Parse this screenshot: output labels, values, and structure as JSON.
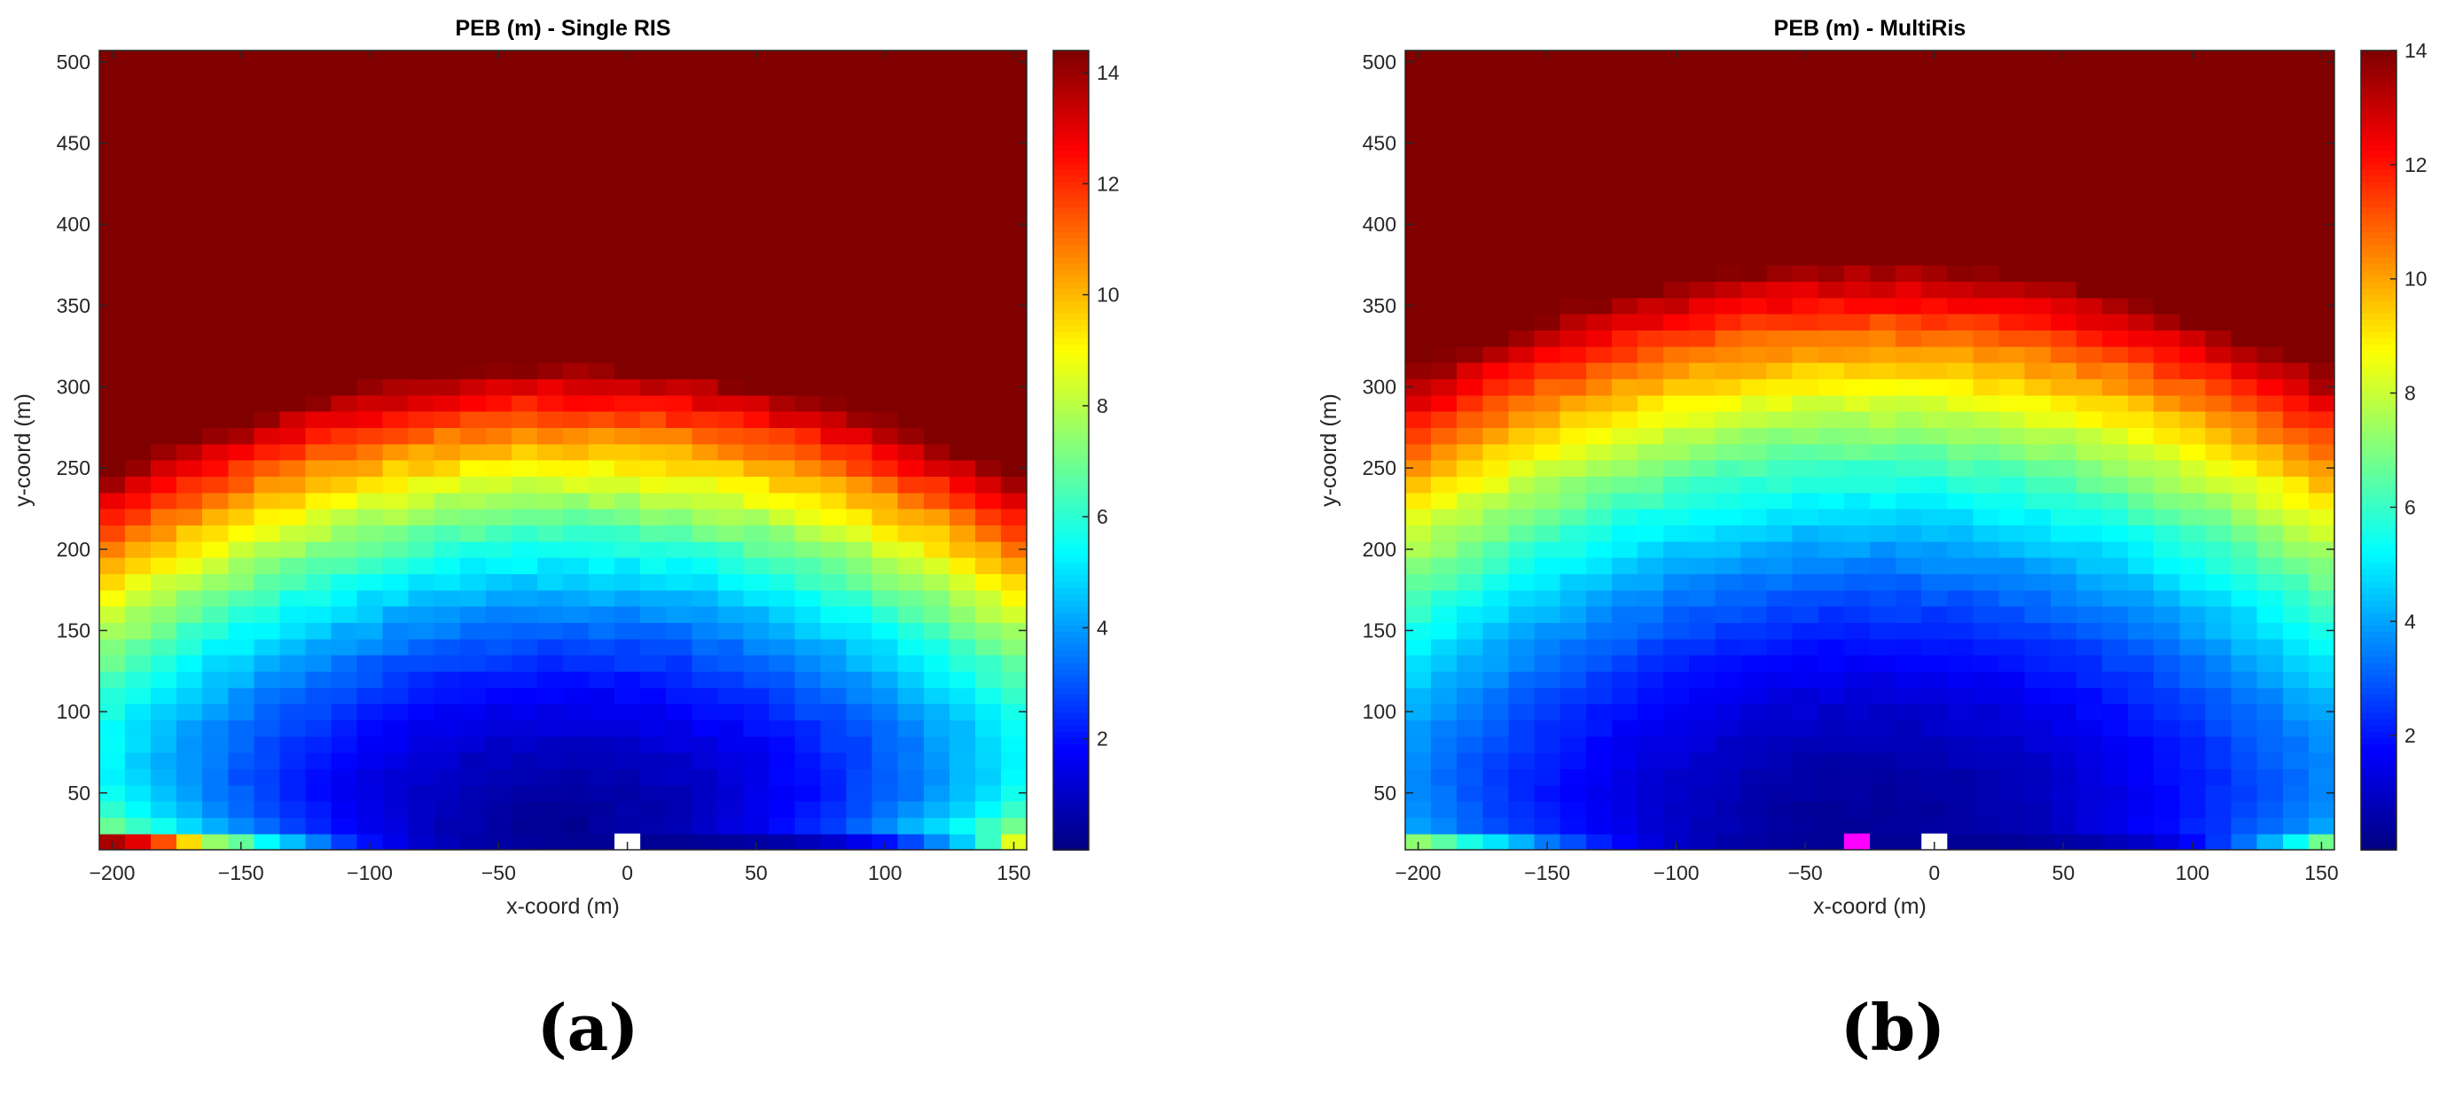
{
  "chart_data": [
    {
      "type": "heatmap",
      "title": "PEB (m) - Single RIS",
      "xlabel": "x-coord (m)",
      "ylabel": "y-coord (m)",
      "xlim": [
        -205,
        155
      ],
      "ylim": [
        15,
        507
      ],
      "x_ticks": [
        -200,
        -150,
        -100,
        -50,
        0,
        50,
        100,
        150
      ],
      "x_tick_labels": [
        "−200",
        "−150",
        "−100",
        "−50",
        "0",
        "50",
        "100",
        "150"
      ],
      "y_ticks": [
        50,
        100,
        150,
        200,
        250,
        300,
        350,
        400,
        450,
        500
      ],
      "y_tick_labels": [
        "50",
        "100",
        "150",
        "200",
        "250",
        "300",
        "350",
        "400",
        "450",
        "500"
      ],
      "colorbar": {
        "range": [
          0,
          14.4
        ],
        "ticks": [
          2,
          4,
          6,
          8,
          10,
          12,
          14
        ],
        "tick_labels": [
          "2",
          "4",
          "6",
          "8",
          "10",
          "12",
          "14"
        ],
        "colormap": "jet"
      },
      "grid_cell_m": 10,
      "value_model": {
        "base": 0.3,
        "quad_y": 38,
        "quad_x": 5.5,
        "edge_y_amp": 4.2,
        "edge_y_decay": 28,
        "noise": 0.35,
        "bottom_row": [
          13.8,
          13.0,
          11.5,
          9.5,
          7.5,
          6.8,
          5.4,
          4.5,
          3.6,
          2.6,
          2.0,
          1.5,
          1.1,
          0.8,
          0.6,
          0.5,
          0.4,
          0.35,
          0.3,
          0.3,
          0.3,
          0.3,
          0.3,
          0.35,
          0.4,
          0.5,
          0.6,
          0.8,
          1.1,
          1.5,
          2.0,
          2.8,
          3.7,
          4.7,
          6.2,
          8.6
        ]
      },
      "markers": [
        {
          "label": "BS",
          "x": 0,
          "y": 20,
          "color": "#ffffff"
        }
      ]
    },
    {
      "type": "heatmap",
      "title": "PEB (m) - MultiRis",
      "xlabel": "x-coord (m)",
      "ylabel": "y-coord (m)",
      "xlim": [
        -205,
        155
      ],
      "ylim": [
        15,
        507
      ],
      "x_ticks": [
        -200,
        -150,
        -100,
        -50,
        0,
        50,
        100,
        150
      ],
      "x_tick_labels": [
        "−200",
        "−150",
        "−100",
        "−50",
        "0",
        "50",
        "100",
        "150"
      ],
      "y_ticks": [
        50,
        100,
        150,
        200,
        250,
        300,
        350,
        400,
        450,
        500
      ],
      "y_tick_labels": [
        "50",
        "100",
        "150",
        "200",
        "250",
        "300",
        "350",
        "400",
        "450",
        "500"
      ],
      "colorbar": {
        "range": [
          0,
          14
        ],
        "ticks": [
          2,
          4,
          6,
          8,
          10,
          12,
          14
        ],
        "tick_labels": [
          "2",
          "4",
          "6",
          "8",
          "10",
          "12",
          "14"
        ],
        "colormap": "jet"
      },
      "grid_cell_m": 10,
      "value_model": {
        "base": 0.3,
        "quad_y": 25,
        "quad_x": 4.0,
        "edge_y_amp": 1.6,
        "edge_y_decay": 30,
        "noise": 0.25,
        "bottom_row": [
          7.2,
          6.5,
          5.6,
          4.9,
          4.2,
          3.4,
          2.8,
          2.2,
          1.7,
          1.3,
          1.0,
          0.8,
          0.6,
          0.5,
          0.4,
          0.35,
          0.3,
          0.3,
          0.3,
          0.3,
          0.3,
          0.3,
          0.3,
          0.35,
          0.4,
          0.5,
          0.6,
          0.8,
          1.0,
          1.3,
          1.8,
          2.5,
          3.3,
          4.2,
          5.3,
          6.8
        ]
      },
      "markers": [
        {
          "label": "RIS",
          "x": -30,
          "y": 20,
          "color": "#ff00ff"
        },
        {
          "label": "BS",
          "x": 0,
          "y": 20,
          "color": "#ffffff"
        }
      ]
    }
  ],
  "panel_labels": [
    "(a)",
    "(b)"
  ]
}
